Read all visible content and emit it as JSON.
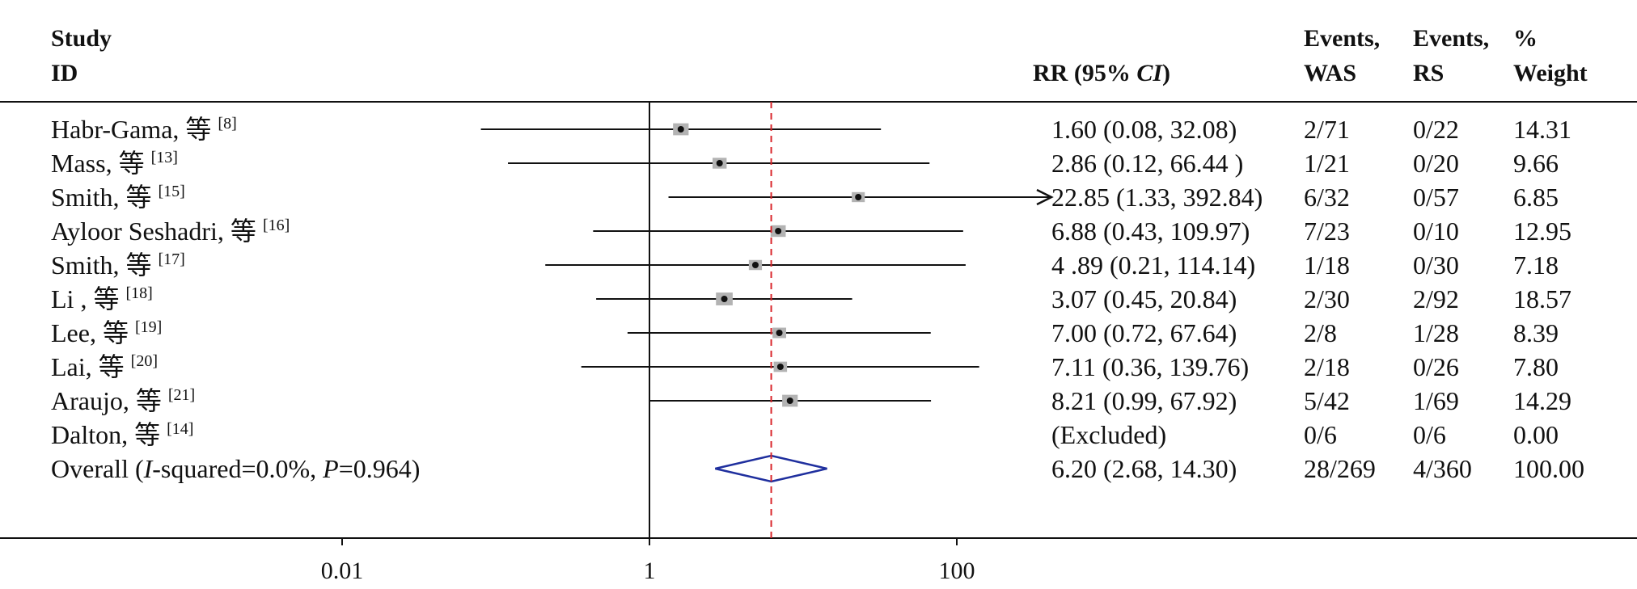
{
  "chart_data": {
    "type": "forest",
    "headers": {
      "study_line1": "Study",
      "study_line2": "ID",
      "rr": "RR (95% ",
      "rr_ci": "CI",
      "rr_close": ")",
      "ev_was_line1": "Events,",
      "ev_was_line2": "WAS",
      "ev_rs_line1": "Events,",
      "ev_rs_line2": "RS",
      "weight_line1": "%",
      "weight_line2": "Weight"
    },
    "x_scale": "log",
    "x_ticks": [
      {
        "value": 0.01,
        "label": "0.01"
      },
      {
        "value": 1,
        "label": "1"
      },
      {
        "value": 100,
        "label": "100"
      }
    ],
    "xlim": [
      0.0003,
      1500
    ],
    "null_line": 1,
    "pooled_line": 6.2,
    "rows": [
      {
        "study": "Habr-Gama, 等",
        "ref": "[8]",
        "rr": 1.6,
        "lo": 0.08,
        "hi": 32.08,
        "rr_text": "1.60 (0.08, 32.08)",
        "was": "2/71",
        "rs": "0/22",
        "weight": "14.31",
        "w": 14.31
      },
      {
        "study": "Mass, 等",
        "ref": "[13]",
        "rr": 2.86,
        "lo": 0.12,
        "hi": 66.44,
        "rr_text": "2.86 (0.12, 66.44 )",
        "was": "1/21",
        "rs": "0/20",
        "weight": "9.66",
        "w": 9.66
      },
      {
        "study": "Smith, 等",
        "ref": "[15]",
        "rr": 22.85,
        "lo": 1.33,
        "hi": 392.84,
        "rr_text": "22.85 (1.33, 392.84)",
        "was": "6/32",
        "rs": "0/57",
        "weight": "6.85",
        "w": 6.85,
        "arrow": true
      },
      {
        "study": "Ayloor Seshadri, 等",
        "ref": "[16]",
        "rr": 6.88,
        "lo": 0.43,
        "hi": 109.97,
        "rr_text": "6.88 (0.43, 109.97)",
        "was": "7/23",
        "rs": "0/10",
        "weight": "12.95",
        "w": 12.95
      },
      {
        "study": "Smith, 等",
        "ref": "[17]",
        "rr": 4.89,
        "lo": 0.21,
        "hi": 114.14,
        "rr_text": "4 .89 (0.21, 114.14)",
        "was": "1/18",
        "rs": "0/30",
        "weight": "7.18",
        "w": 7.18
      },
      {
        "study": "Li , 等",
        "ref": "[18]",
        "rr": 3.07,
        "lo": 0.45,
        "hi": 20.84,
        "rr_text": "3.07 (0.45, 20.84)",
        "was": "2/30",
        "rs": "2/92",
        "weight": "18.57",
        "w": 18.57
      },
      {
        "study": "Lee, 等",
        "ref": "[19]",
        "rr": 7.0,
        "lo": 0.72,
        "hi": 67.64,
        "rr_text": "7.00 (0.72, 67.64)",
        "was": "2/8",
        "rs": "1/28",
        "weight": "8.39",
        "w": 8.39
      },
      {
        "study": "Lai, 等",
        "ref": "[20]",
        "rr": 7.11,
        "lo": 0.36,
        "hi": 139.76,
        "rr_text": "7.11 (0.36, 139.76)",
        "was": "2/18",
        "rs": "0/26",
        "weight": "7.80",
        "w": 7.8
      },
      {
        "study": "Araujo, 等",
        "ref": "[21]",
        "rr": 8.21,
        "lo": 0.99,
        "hi": 67.92,
        "rr_text": "8.21 (0.99, 67.92)",
        "was": "5/42",
        "rs": "1/69",
        "weight": "14.29",
        "w": 14.29
      },
      {
        "study": "Dalton, 等",
        "ref": "[14]",
        "rr_text": "(Excluded)",
        "was": "0/6",
        "rs": "0/6",
        "weight": "0.00",
        "w": 0
      }
    ],
    "overall": {
      "label_parts": [
        "Overall (",
        "I",
        "-squared=0.0%, ",
        "P",
        "=0.964)"
      ],
      "rr": 6.2,
      "lo": 2.68,
      "hi": 14.3,
      "rr_text": "6.20 (2.68, 14.30)",
      "was": "28/269",
      "rs": "4/360",
      "weight": "100.00"
    },
    "colors": {
      "text": "#111111",
      "box": "#b3b3b3",
      "diamond": "#1f2f9e",
      "pooled_line": "#d9262c"
    }
  }
}
